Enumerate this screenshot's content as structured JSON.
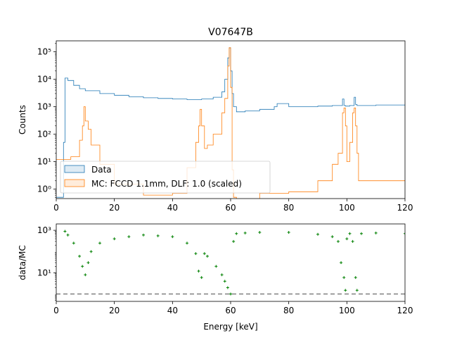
{
  "chart_data": [
    {
      "type": "line",
      "panel": "top",
      "title": "V07647B",
      "xlabel": "",
      "ylabel": "Counts",
      "xlim": [
        0,
        120
      ],
      "ylim": [
        0.45,
        250000
      ],
      "yscale": "log",
      "xticks": [
        0,
        20,
        40,
        60,
        80,
        100,
        120
      ],
      "xtick_labels": [
        "0",
        "20",
        "40",
        "60",
        "80",
        "100",
        "120"
      ],
      "yticks": [
        1,
        10,
        100,
        1000,
        10000,
        100000
      ],
      "ytick_labels": [
        "10⁰",
        "10¹",
        "10²",
        "10³",
        "10⁴",
        "10⁵"
      ],
      "legend_position": "lower-left",
      "series": [
        {
          "name": "Data",
          "color": "#1f77b4",
          "style": "step",
          "x": [
            0,
            2,
            2.5,
            3,
            4,
            6,
            8,
            10,
            15,
            20,
            25,
            30,
            35,
            40,
            45,
            50,
            54,
            57,
            58,
            59,
            59.5,
            60,
            60.5,
            61,
            62,
            65,
            70,
            75,
            76,
            80,
            85,
            90,
            95,
            98.5,
            99,
            99.5,
            101,
            102.5,
            103,
            103.5,
            105,
            110,
            115,
            120
          ],
          "y": [
            0.5,
            0.5,
            50,
            11000,
            9000,
            6000,
            4500,
            3800,
            3000,
            2600,
            2300,
            2100,
            2000,
            1900,
            1800,
            1900,
            2200,
            3500,
            10000,
            60000,
            140000,
            20000,
            3000,
            1000,
            650,
            700,
            800,
            1000,
            1300,
            1000,
            1000,
            1050,
            1100,
            1900,
            1100,
            1050,
            1100,
            2200,
            1200,
            1100,
            1100,
            1150,
            1150,
            1100
          ]
        },
        {
          "name": "MC: FCCD 1.1mm, DLF: 1.0 (scaled)",
          "color": "#ff7f0e",
          "style": "step",
          "x": [
            0,
            2,
            5,
            8,
            9,
            9.5,
            10,
            11,
            12,
            15,
            20,
            30,
            40,
            45,
            48,
            49,
            49.5,
            50,
            51,
            52,
            54,
            57,
            58,
            59,
            59.5,
            60,
            60.5,
            61,
            62,
            70,
            80,
            90,
            95,
            97,
            98.5,
            99,
            99.5,
            100,
            101,
            102,
            102.5,
            103,
            103.5,
            104,
            110,
            120
          ],
          "y": [
            12,
            12,
            15,
            60,
            200,
            1000,
            300,
            150,
            40,
            8,
            1.5,
            0.6,
            0.7,
            6,
            50,
            200,
            800,
            200,
            30,
            40,
            100,
            600,
            2000,
            30000,
            140000,
            5000,
            5,
            0.5,
            0.4,
            0.7,
            0.8,
            2,
            8,
            20,
            600,
            900,
            200,
            10,
            50,
            600,
            900,
            200,
            20,
            2,
            2,
            2
          ]
        }
      ]
    },
    {
      "type": "scatter",
      "panel": "bottom",
      "title": "",
      "xlabel": "Energy [keV]",
      "ylabel": "data/MC",
      "xlim": [
        0,
        120
      ],
      "ylim": [
        0.45,
        2000
      ],
      "yscale": "log",
      "xticks": [
        0,
        20,
        40,
        60,
        80,
        100,
        120
      ],
      "xtick_labels": [
        "0",
        "20",
        "40",
        "60",
        "80",
        "100",
        "120"
      ],
      "yticks": [
        10,
        1000
      ],
      "ytick_labels": [
        "10¹",
        "10³"
      ],
      "reference_line": {
        "y": 1,
        "color": "#808080",
        "style": "dashed"
      },
      "series": [
        {
          "name": "",
          "color": "#008000",
          "marker": "+",
          "x": [
            3,
            4,
            6,
            8,
            9,
            10,
            11,
            12,
            15,
            20,
            25,
            30,
            35,
            40,
            45,
            48,
            49,
            50,
            51,
            52,
            55,
            57,
            58,
            59,
            60,
            61,
            62,
            65,
            70,
            80,
            90,
            95,
            97,
            98,
            99,
            99.5,
            100,
            101,
            102,
            103,
            103.5,
            105,
            110,
            120
          ],
          "y": [
            900,
            600,
            250,
            60,
            20,
            8,
            30,
            100,
            250,
            400,
            500,
            600,
            550,
            500,
            250,
            80,
            12,
            6,
            80,
            60,
            20,
            8,
            4,
            2,
            1,
            300,
            700,
            750,
            800,
            800,
            650,
            500,
            300,
            30,
            6,
            1.5,
            400,
            700,
            300,
            6,
            1.5,
            700,
            750,
            700
          ]
        }
      ]
    }
  ]
}
